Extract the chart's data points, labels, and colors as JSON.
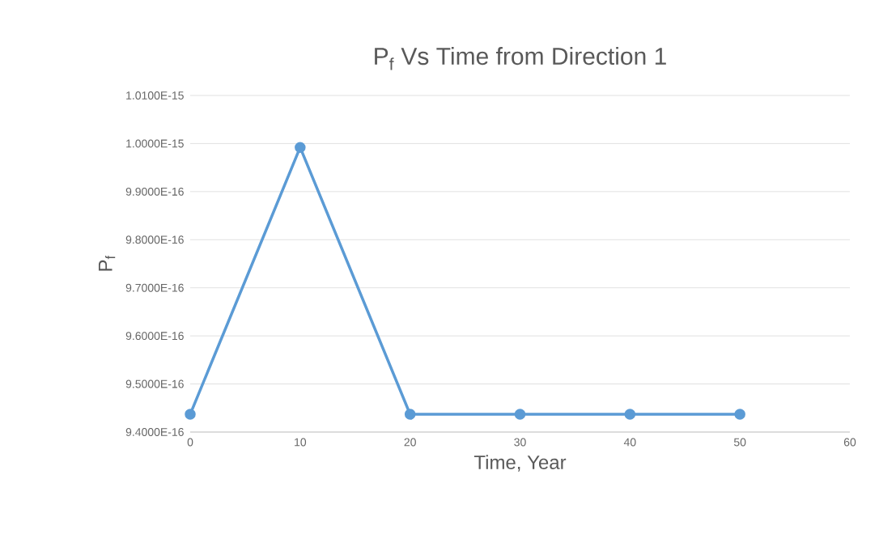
{
  "chart_data": {
    "type": "line",
    "title": "P$_{f}$ Vs Time from Direction 1",
    "xlabel": "Time, Year",
    "ylabel": "P$_{f}$",
    "x": [
      0,
      10,
      20,
      30,
      40,
      50
    ],
    "series": [
      {
        "color": "#5b9bd5",
        "values": [
          9.437e-16,
          9.992e-16,
          9.437e-16,
          9.437e-16,
          9.437e-16,
          9.437e-16
        ]
      }
    ],
    "xlim": [
      0,
      60
    ],
    "xticks": [
      0,
      10,
      20,
      30,
      40,
      50,
      60
    ],
    "ylim": [
      9.4e-16,
      1.01e-15
    ],
    "yticks": [
      {
        "value": 9.4e-16,
        "label": "9.4000E-16"
      },
      {
        "value": 9.5e-16,
        "label": "9.5000E-16"
      },
      {
        "value": 9.6e-16,
        "label": "9.6000E-16"
      },
      {
        "value": 9.7e-16,
        "label": "9.7000E-16"
      },
      {
        "value": 9.8e-16,
        "label": "9.8000E-16"
      },
      {
        "value": 9.9e-16,
        "label": "9.9000E-16"
      },
      {
        "value": 1e-15,
        "label": "1.0000E-15"
      },
      {
        "value": 1.01e-15,
        "label": "1.0100E-15"
      }
    ],
    "grid": "y",
    "marker": "circle",
    "line_style": "solid"
  }
}
